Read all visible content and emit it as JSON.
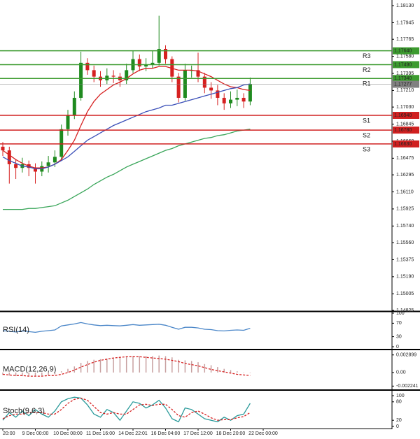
{
  "chart_data": [
    {
      "type": "candlestick",
      "categories": [
        "20:00",
        null,
        null,
        null,
        null,
        "9 Dec 00:00",
        null,
        null,
        null,
        null,
        "10 Dec 08:00",
        null,
        null,
        null,
        null,
        "11 Dec 16:00",
        null,
        null,
        null,
        null,
        "14 Dec 22:01",
        null,
        null,
        null,
        null,
        "16 Dec 04:00",
        null,
        null,
        null,
        null,
        "17 Dec 12:00",
        null,
        null,
        null,
        null,
        "18 Dec 20:00",
        null,
        null,
        null,
        null,
        "22 Dec 00:00"
      ],
      "open": [
        1.166,
        1.1656,
        1.1641,
        1.1637,
        1.1641,
        1.1637,
        1.1633,
        1.1639,
        1.1643,
        1.1649,
        1.1679,
        1.1694,
        1.1713,
        1.1751,
        1.1743,
        1.1736,
        1.1732,
        1.1737,
        1.1736,
        1.1732,
        1.1743,
        1.1755,
        1.1747,
        1.1749,
        1.1751,
        1.1766,
        1.1755,
        1.1736,
        1.1713,
        1.1743,
        1.1743,
        1.1736,
        1.1724,
        1.1721,
        1.1713,
        1.1707,
        1.1711,
        1.1713,
        1.1709,
        null,
        null
      ],
      "high": [
        1.1665,
        1.166,
        1.1646,
        1.1648,
        1.1645,
        1.1642,
        1.1644,
        1.165,
        1.1656,
        1.1684,
        1.17,
        1.172,
        1.1763,
        1.1756,
        1.1748,
        1.1742,
        1.1745,
        1.1743,
        1.174,
        1.175,
        1.1764,
        1.176,
        1.1756,
        1.1764,
        1.1802,
        1.177,
        1.1758,
        1.174,
        1.175,
        1.1748,
        1.1762,
        1.174,
        1.173,
        1.1727,
        1.1718,
        1.172,
        1.1722,
        1.1718,
        1.1735,
        null,
        null
      ],
      "low": [
        1.165,
        1.162,
        1.1625,
        1.1632,
        1.1628,
        1.162,
        1.1628,
        1.1632,
        1.1638,
        1.1645,
        1.1672,
        1.169,
        1.171,
        1.1738,
        1.173,
        1.1725,
        1.1728,
        1.1729,
        1.1725,
        1.1728,
        1.174,
        1.1742,
        1.1742,
        1.1745,
        1.1748,
        1.175,
        1.173,
        1.1708,
        1.171,
        1.1735,
        1.173,
        1.1718,
        1.1712,
        1.1705,
        1.17,
        1.1702,
        1.1704,
        1.1702,
        1.1705,
        null,
        null
      ],
      "close": [
        1.1656,
        1.1641,
        1.1637,
        1.1641,
        1.1637,
        1.1633,
        1.1639,
        1.1643,
        1.1649,
        1.1679,
        1.1694,
        1.1713,
        1.1751,
        1.1743,
        1.1736,
        1.1732,
        1.1737,
        1.1736,
        1.1732,
        1.1743,
        1.1755,
        1.1747,
        1.1749,
        1.1751,
        1.1766,
        1.1755,
        1.1736,
        1.1713,
        1.1743,
        1.1743,
        1.1736,
        1.1724,
        1.1721,
        1.1713,
        1.1707,
        1.1711,
        1.1713,
        1.1709,
        1.1728,
        null,
        null
      ],
      "up_color": "#1f8a1f",
      "down_color": "#d62020",
      "series": [
        {
          "color": "#d62020",
          "values": [
            1.1656,
            1.1651,
            1.1646,
            1.1642,
            1.1639,
            1.1637,
            1.1637,
            1.1638,
            1.1641,
            1.1646,
            1.1656,
            1.1667,
            1.1683,
            1.1698,
            1.1709,
            1.1717,
            1.1722,
            1.1727,
            1.173,
            1.1734,
            1.1739,
            1.1743,
            1.1745,
            1.1745,
            1.1747,
            1.1747,
            1.1745,
            1.1743,
            1.1743,
            1.1743,
            1.1742,
            1.1739,
            1.1736,
            1.1732,
            1.1728,
            1.1725,
            1.1724,
            1.1722,
            1.1721,
            null,
            null
          ]
        },
        {
          "color": "#3b4fb8",
          "values": [
            1.1649,
            1.1645,
            1.1642,
            1.1639,
            1.1638,
            1.1636,
            1.1636,
            1.1638,
            1.1641,
            1.1645,
            1.1649,
            1.1655,
            1.1661,
            1.1667,
            1.1671,
            1.1675,
            1.1679,
            1.1683,
            1.1686,
            1.1689,
            1.1692,
            1.1695,
            1.1698,
            1.17,
            1.1702,
            1.1705,
            1.1705,
            1.1707,
            1.1709,
            1.1711,
            1.1713,
            1.1715,
            1.1717,
            1.1719,
            1.1721,
            1.1723,
            1.1724,
            1.1727,
            1.1728,
            null,
            null
          ]
        },
        {
          "color": "#3aa65a",
          "values": [
            1.1592,
            1.1592,
            1.1592,
            1.1592,
            1.1593,
            1.1593,
            1.1594,
            1.1595,
            1.1596,
            1.1599,
            1.1602,
            1.1606,
            1.161,
            1.1614,
            1.1619,
            1.1623,
            1.1627,
            1.163,
            1.1634,
            1.1638,
            1.1641,
            1.1644,
            1.1647,
            1.165,
            1.1653,
            1.1656,
            1.1658,
            1.1661,
            1.1663,
            1.1665,
            1.1667,
            1.1669,
            1.167,
            1.1672,
            1.1673,
            1.1675,
            1.1677,
            1.1678,
            1.1679,
            null,
            null
          ]
        }
      ],
      "ylim": [
        1.14825,
        1.18191
      ],
      "yticks": [
        {
          "value": 1.1813,
          "label": "1.18130"
        },
        {
          "value": 1.17945,
          "label": "1.17945"
        },
        {
          "value": 1.17765,
          "label": "1.17765"
        },
        {
          "value": 1.1758,
          "label": "1.17580"
        },
        {
          "value": 1.17395,
          "label": "1.17395"
        },
        {
          "value": 1.1721,
          "label": "1.17210"
        },
        {
          "value": 1.1703,
          "label": "1.17030"
        },
        {
          "value": 1.16845,
          "label": "1.16845"
        },
        {
          "value": 1.1666,
          "label": "1.16660"
        },
        {
          "value": 1.16475,
          "label": "1.16475"
        },
        {
          "value": 1.16295,
          "label": "1.16295"
        },
        {
          "value": 1.1611,
          "label": "1.16110"
        },
        {
          "value": 1.15925,
          "label": "1.15925"
        },
        {
          "value": 1.1574,
          "label": "1.15740"
        },
        {
          "value": 1.1556,
          "label": "1.15560"
        },
        {
          "value": 1.15375,
          "label": "1.15375"
        },
        {
          "value": 1.1519,
          "label": "1.15190"
        },
        {
          "value": 1.15005,
          "label": "1.15005"
        },
        {
          "value": 1.14825,
          "label": "1.14825"
        }
      ],
      "levels": [
        {
          "name": "R3",
          "value": 1.1764,
          "label": "1.17640",
          "color": "#3c9b2f"
        },
        {
          "name": "R2",
          "value": 1.1749,
          "label": "1.17490",
          "color": "#3c9b2f"
        },
        {
          "name": "R1",
          "value": 1.1734,
          "label": "1.17340",
          "color": "#3c9b2f"
        },
        {
          "name": "S1",
          "value": 1.1694,
          "label": "1.16940",
          "color": "#d02020"
        },
        {
          "name": "S2",
          "value": 1.1678,
          "label": "1.16780",
          "color": "#d02020"
        },
        {
          "name": "S3",
          "value": 1.1663,
          "label": "1.16630",
          "color": "#d02020"
        }
      ],
      "current": {
        "value": 1.17277,
        "label": "1.17277",
        "color": "#808080"
      }
    },
    {
      "type": "line",
      "title": "RSI(14)",
      "series": [
        {
          "color": "#4a86c8",
          "values": [
            48,
            46,
            44,
            47,
            45,
            43,
            46,
            48,
            50,
            62,
            65,
            68,
            72,
            68,
            65,
            63,
            64,
            63,
            62,
            64,
            66,
            64,
            65,
            66,
            67,
            64,
            58,
            52,
            58,
            58,
            56,
            52,
            51,
            48,
            47,
            49,
            50,
            49,
            55,
            null,
            null
          ]
        }
      ],
      "ylim": [
        0,
        100
      ],
      "yticks": [
        100,
        70,
        30,
        0
      ]
    },
    {
      "type": "combo",
      "title": "MACD(12,26,9)",
      "series": [
        {
          "kind": "bar",
          "color": "#c8a0a0",
          "values": [
            -0.0004,
            -0.0005,
            -0.0006,
            -0.0006,
            -0.0006,
            -0.0006,
            -0.0005,
            -0.0004,
            -0.0003,
            0.0002,
            0.0006,
            0.001,
            0.0016,
            0.0019,
            0.0021,
            0.0022,
            0.0023,
            0.0024,
            0.0025,
            0.0026,
            0.0027,
            0.0027,
            0.0027,
            0.0027,
            0.0028,
            0.0027,
            0.0025,
            0.0021,
            0.002,
            0.0019,
            0.0017,
            0.0014,
            0.0012,
            0.0009,
            0.0006,
            0.0004,
            0.0002,
            0,
            0,
            null,
            null
          ]
        },
        {
          "kind": "line",
          "dash": true,
          "color": "#d62020",
          "values": [
            -0.0003,
            -0.0004,
            -0.0005,
            -0.0005,
            -0.0006,
            -0.0006,
            -0.0006,
            -0.0005,
            -0.0005,
            -0.0003,
            0,
            0.0004,
            0.0009,
            0.0013,
            0.0017,
            0.002,
            0.0022,
            0.0024,
            0.0025,
            0.0026,
            0.0026,
            0.0026,
            0.0025,
            0.0024,
            0.0023,
            0.0022,
            0.002,
            0.0018,
            0.0015,
            0.0013,
            0.0011,
            0.0008,
            0.0005,
            0.0003,
            0.0001,
            -0.0001,
            -0.0003,
            -0.0004,
            -0.0005,
            null,
            null
          ]
        }
      ],
      "ylim": [
        -0.00255,
        0.00356
      ],
      "yticks": [
        0.002899,
        {
          "value": 0,
          "label": "0.00"
        },
        -0.002241
      ]
    },
    {
      "type": "line",
      "title": "Stoch(9,6,3)",
      "series": [
        {
          "color": "#2a9a9a",
          "values": [
            20,
            45,
            30,
            50,
            35,
            55,
            40,
            30,
            50,
            80,
            90,
            95,
            92,
            70,
            40,
            30,
            55,
            45,
            20,
            50,
            80,
            75,
            60,
            70,
            85,
            60,
            25,
            15,
            60,
            55,
            40,
            25,
            20,
            15,
            30,
            20,
            35,
            40,
            75,
            null,
            null
          ]
        },
        {
          "color": "#d62020",
          "dash": true,
          "values": [
            25,
            35,
            40,
            40,
            45,
            45,
            45,
            40,
            40,
            55,
            75,
            88,
            92,
            85,
            65,
            45,
            40,
            45,
            40,
            40,
            55,
            70,
            72,
            68,
            72,
            72,
            55,
            35,
            30,
            45,
            50,
            40,
            28,
            20,
            22,
            22,
            28,
            32,
            45,
            null,
            null
          ]
        }
      ],
      "ylim": [
        0,
        100
      ],
      "yticks": [
        100,
        80,
        20,
        0
      ]
    }
  ]
}
